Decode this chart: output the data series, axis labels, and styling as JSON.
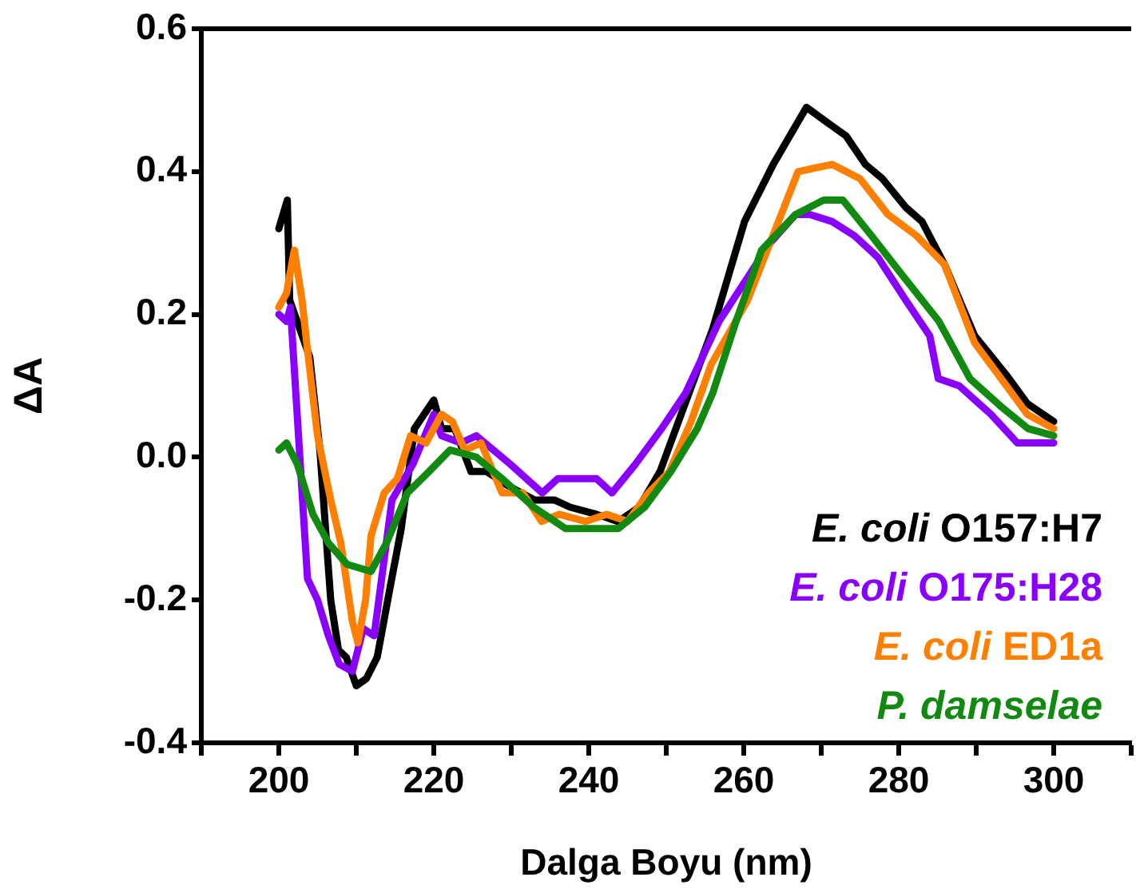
{
  "chart_data": {
    "type": "line",
    "xlabel": "Dalga Boyu (nm)",
    "ylabel": "ΔA",
    "xlim": [
      190,
      310
    ],
    "ylim": [
      -0.4,
      0.6
    ],
    "xticks": [
      {
        "value": 190,
        "label": null
      },
      200,
      {
        "value": 210,
        "label": null
      },
      220,
      {
        "value": 230,
        "label": null
      },
      240,
      {
        "value": 250,
        "label": null
      },
      260,
      {
        "value": 270,
        "label": null
      },
      280,
      {
        "value": 290,
        "label": null
      },
      300,
      {
        "value": 310,
        "label": null
      }
    ],
    "yticks": [
      {
        "value": -0.4,
        "label": "-0.4"
      },
      {
        "value": -0.2,
        "label": "-0.2"
      },
      {
        "value": 0,
        "label": "0.0"
      },
      {
        "value": 0.2,
        "label": "0.2"
      },
      {
        "value": 0.4,
        "label": "0.4"
      },
      {
        "value": 0.6,
        "label": "0.6"
      }
    ],
    "grid": false,
    "legend": "bottom right",
    "marker": "none",
    "line_style": "solid",
    "series": [
      {
        "name": "E. coli O157:H7",
        "color": "#000000",
        "x": [
          200,
          201.1,
          201.4,
          204,
          205.3,
          206.7,
          207.7,
          208.7,
          210,
          211.3,
          212.7,
          214.4,
          215.8,
          217.5,
          220,
          221,
          222.7,
          224.8,
          226.8,
          229.6,
          233,
          235.6,
          237.6,
          241,
          243.8,
          246.5,
          249.2,
          252.6,
          256,
          260.1,
          263.8,
          268.1,
          270.6,
          273.2,
          275.7,
          277.9,
          280.9,
          283,
          285.9,
          289.8,
          293.9,
          296.6,
          300
        ],
        "values": [
          0.32,
          0.36,
          0.22,
          0.14,
          0.01,
          -0.2,
          -0.27,
          -0.28,
          -0.32,
          -0.31,
          -0.28,
          -0.18,
          -0.1,
          0.04,
          0.08,
          0.04,
          0.04,
          -0.02,
          -0.02,
          -0.04,
          -0.06,
          -0.06,
          -0.07,
          -0.08,
          -0.09,
          -0.07,
          -0.02,
          0.08,
          0.18,
          0.33,
          0.41,
          0.49,
          0.47,
          0.45,
          0.41,
          0.39,
          0.35,
          0.33,
          0.27,
          0.17,
          0.115,
          0.075,
          0.05
        ]
      },
      {
        "name": "E. coli O175:H28",
        "color": "#8a00ff",
        "x": [
          200,
          201,
          201.5,
          203.7,
          205,
          206.4,
          207.8,
          209.5,
          210.9,
          212.3,
          214.6,
          217.3,
          220,
          221,
          223.5,
          225.5,
          229.9,
          234,
          236,
          238.5,
          241,
          243,
          246,
          249.4,
          252.5,
          256.8,
          263.4,
          266.7,
          268.5,
          271.4,
          274.3,
          277.3,
          280.9,
          284,
          285.1,
          287.8,
          291.9,
          295.3,
          300
        ],
        "values": [
          0.2,
          0.19,
          0.21,
          -0.17,
          -0.2,
          -0.25,
          -0.29,
          -0.3,
          -0.24,
          -0.25,
          -0.06,
          -0.01,
          0.06,
          0.03,
          0.02,
          0.03,
          -0.01,
          -0.05,
          -0.03,
          -0.03,
          -0.03,
          -0.05,
          -0.01,
          0.04,
          0.09,
          0.19,
          0.3,
          0.34,
          0.34,
          0.33,
          0.31,
          0.28,
          0.22,
          0.17,
          0.11,
          0.1,
          0.06,
          0.02,
          0.02
        ]
      },
      {
        "name": "E. coli ED1a",
        "color": "#ff7f00",
        "x": [
          200,
          201,
          202,
          203,
          203.7,
          205,
          206.7,
          208,
          209.5,
          210.2,
          211.2,
          211.9,
          213.6,
          215.3,
          217,
          219,
          221,
          222.4,
          224,
          226.1,
          228.8,
          231.5,
          233.9,
          236.2,
          239.6,
          242.3,
          245,
          247.7,
          250.4,
          253.2,
          255.8,
          260.5,
          263.4,
          267,
          271.4,
          275,
          278.6,
          282.3,
          285.9,
          289.8,
          293.9,
          296.6,
          300
        ],
        "values": [
          0.21,
          0.23,
          0.29,
          0.22,
          0.15,
          0.03,
          -0.06,
          -0.12,
          -0.23,
          -0.26,
          -0.2,
          -0.11,
          -0.05,
          -0.03,
          0.03,
          0.02,
          0.06,
          0.05,
          0.01,
          0.02,
          -0.05,
          -0.05,
          -0.09,
          -0.08,
          -0.09,
          -0.08,
          -0.09,
          -0.05,
          -0.02,
          0.05,
          0.13,
          0.22,
          0.3,
          0.4,
          0.41,
          0.39,
          0.34,
          0.31,
          0.27,
          0.16,
          0.1,
          0.06,
          0.04
        ]
      },
      {
        "name": "P. damselae",
        "color": "#128a12",
        "x": [
          200,
          201,
          202.4,
          204.4,
          206.4,
          208.8,
          211.9,
          213.9,
          216.6,
          219.4,
          222.1,
          225.5,
          228.8,
          232.9,
          237,
          241.1,
          243.8,
          247.2,
          250.6,
          254,
          256,
          259,
          262.3,
          266.7,
          270.3,
          272.8,
          276.5,
          280.1,
          285.2,
          289.2,
          293.3,
          296.7,
          300
        ],
        "values": [
          0.01,
          0.02,
          -0.01,
          -0.08,
          -0.12,
          -0.15,
          -0.16,
          -0.12,
          -0.05,
          -0.02,
          0.01,
          0,
          -0.03,
          -0.07,
          -0.1,
          -0.1,
          -0.1,
          -0.07,
          -0.02,
          0.04,
          0.09,
          0.19,
          0.29,
          0.34,
          0.36,
          0.36,
          0.31,
          0.26,
          0.19,
          0.11,
          0.07,
          0.04,
          0.03
        ]
      }
    ]
  }
}
